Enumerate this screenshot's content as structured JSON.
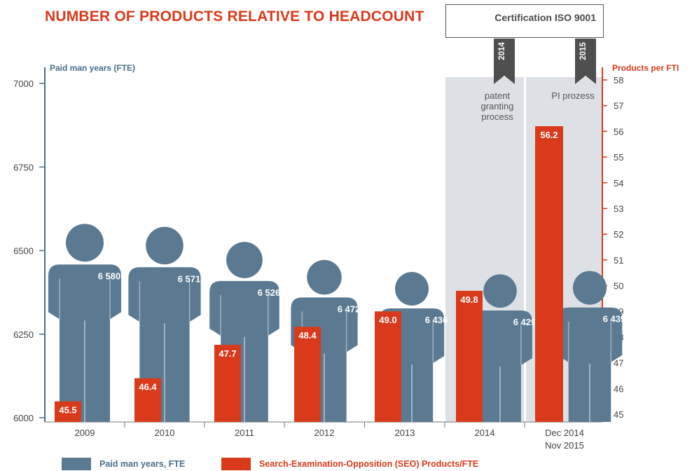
{
  "title": "NUMBER OF PRODUCTS RELATIVE TO HEADCOUNT",
  "certification": "Certification ISO 9001",
  "colors": {
    "fte": "#5b7a92",
    "seo": "#d93a1b",
    "shade": "#dde1e5",
    "title": "#d93a1b",
    "axis_left": "#4a6f8c"
  },
  "chart_data": {
    "type": "bar",
    "categories": [
      [
        "2009"
      ],
      [
        "2010"
      ],
      [
        "2011"
      ],
      [
        "2012"
      ],
      [
        "2013"
      ],
      [
        "2014"
      ],
      [
        "Dec 2014",
        "Nov 2015"
      ]
    ],
    "y_left": {
      "label": "Paid man years (FTE)",
      "ticks": [
        "6000",
        "6250",
        "6500",
        "6750",
        "7000"
      ],
      "range": [
        6000,
        7000
      ]
    },
    "y_right": {
      "label": "Products per FTI",
      "ticks": [
        "45",
        "46",
        "47",
        "48",
        "49",
        "50",
        "51",
        "52",
        "53",
        "54",
        "55",
        "56",
        "57",
        "58"
      ],
      "range": [
        45,
        58
      ]
    },
    "series": [
      {
        "name": "Paid man years, FTE",
        "axis": "left",
        "values": [
          6580,
          6571,
          6526,
          6472,
          6436,
          6429,
          6439
        ],
        "labels": [
          "6 580",
          "6 571",
          "6 526",
          "6 472",
          "6 436",
          "6 429",
          "6 439"
        ]
      },
      {
        "name": "Search-Examination-Opposition (SEO) Products/FTE",
        "axis": "right",
        "values": [
          45.5,
          46.4,
          47.7,
          48.4,
          49.0,
          49.8,
          56.2
        ],
        "labels": [
          "45.5",
          "46.4",
          "47.7",
          "48.4",
          "49.0",
          "49.8",
          "56.2"
        ]
      }
    ],
    "milestones": [
      {
        "year": "2014",
        "note": [
          "patent",
          "granting",
          "process"
        ]
      },
      {
        "year": "2015",
        "note": [
          "PI prozess"
        ]
      }
    ],
    "legend_position": "bottom"
  }
}
